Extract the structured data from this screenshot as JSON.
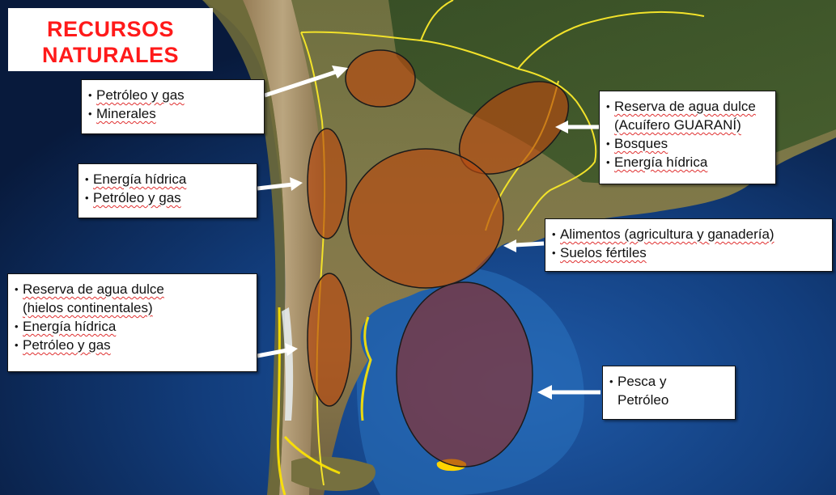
{
  "title": {
    "line1": "RECURSOS",
    "line2": "NATURALES"
  },
  "colors": {
    "title_red": "#ff1a1a",
    "ocean": "#0f3a78",
    "land": "#8a7a45",
    "resource_zone_fill": "#b84a10",
    "border_line": "#f2e22a",
    "arrow": "#ffffff"
  },
  "boxes": {
    "northwest": {
      "items": [
        "Petróleo y gas",
        "Minerales"
      ]
    },
    "cuyo": {
      "items": [
        "Energía hídrica",
        "Petróleo y gas"
      ]
    },
    "patagonia": {
      "items": [
        "Reserva de agua dulce",
        "(hielos continentales)",
        "Energía hídrica",
        "Petróleo y gas"
      ]
    },
    "northeast": {
      "items": [
        "Reserva de agua dulce",
        "(Acuífero GUARANÍ)",
        "Bosques",
        "Energía hídrica"
      ]
    },
    "pampas": {
      "items": [
        "Alimentos (agricultura y ganadería)",
        "Suelos fértiles"
      ]
    },
    "sea": {
      "items": [
        "Pesca y",
        "Petróleo"
      ]
    }
  }
}
